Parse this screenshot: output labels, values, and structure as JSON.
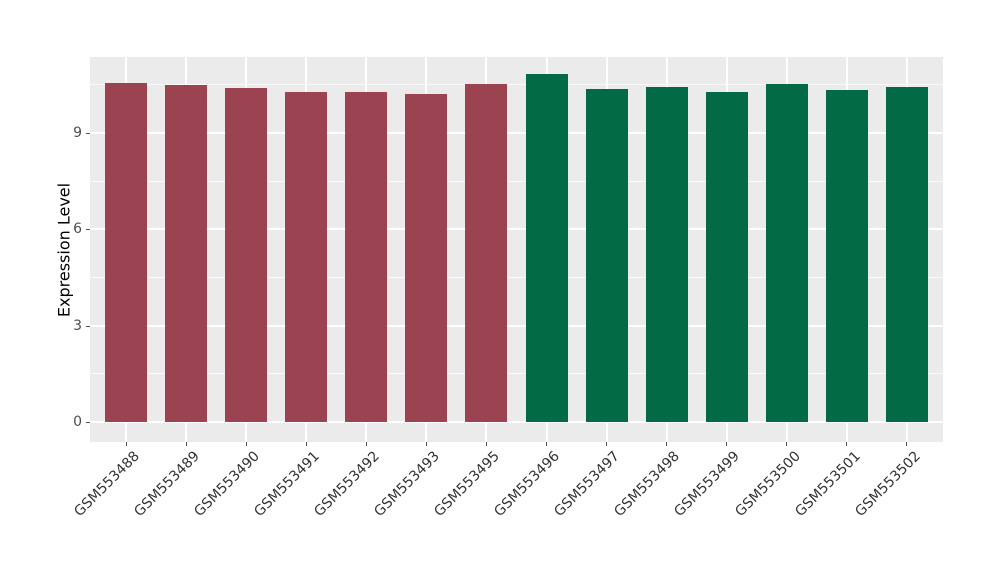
{
  "figure": {
    "background": "#FFFFFF",
    "panel_background": "#EBEBEB",
    "grid_major_color": "#FFFFFF",
    "grid_minor_color": "#F8F8F8",
    "axis_tick_text_color": "#4D4D4D",
    "axis_title_color": "#000000",
    "tick_mark_color": "#555555"
  },
  "chart_data": {
    "type": "bar",
    "title": "",
    "xlabel": "",
    "ylabel": "Expression Level",
    "categories": [
      "GSM553488",
      "GSM553489",
      "GSM553490",
      "GSM553491",
      "GSM553492",
      "GSM553493",
      "GSM553495",
      "GSM553496",
      "GSM553497",
      "GSM553498",
      "GSM553499",
      "GSM553500",
      "GSM553501",
      "GSM553502"
    ],
    "values": [
      10.56,
      10.5,
      10.41,
      10.27,
      10.27,
      10.21,
      10.53,
      10.84,
      10.37,
      10.43,
      10.27,
      10.52,
      10.34,
      10.44
    ],
    "bar_colors": [
      "#9C4351",
      "#9C4351",
      "#9C4351",
      "#9C4351",
      "#9C4351",
      "#9C4351",
      "#9C4351",
      "#026B46",
      "#026B46",
      "#026B46",
      "#026B46",
      "#026B46",
      "#026B46",
      "#026B46"
    ],
    "group_colors": {
      "group1": "#9C4351",
      "group2": "#026B46"
    },
    "yticks": [
      0,
      3,
      6,
      9
    ],
    "minor_yticks": [
      1.5,
      4.5,
      7.5,
      10.5
    ],
    "ylim": [
      -0.63,
      11.37
    ],
    "bar_width_fraction": 0.7,
    "grid": "on",
    "legend": "none",
    "x_tick_angle_deg": 45
  }
}
